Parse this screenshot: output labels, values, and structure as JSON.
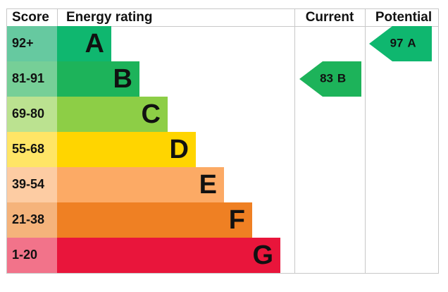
{
  "header": {
    "score": "Score",
    "rating": "Energy rating",
    "current": "Current",
    "potential": "Potential"
  },
  "bands": [
    {
      "score": "92+",
      "letter": "A",
      "color": "#0fb76f",
      "score_color": "#66c9a0"
    },
    {
      "score": "81-91",
      "letter": "B",
      "color": "#1db35a",
      "score_color": "#76cf97"
    },
    {
      "score": "69-80",
      "letter": "C",
      "color": "#8dce46",
      "score_color": "#bbe290"
    },
    {
      "score": "55-68",
      "letter": "D",
      "color": "#ffd500",
      "score_color": "#ffe566"
    },
    {
      "score": "39-54",
      "letter": "E",
      "color": "#fcaa65",
      "score_color": "#fdcca3"
    },
    {
      "score": "21-38",
      "letter": "F",
      "color": "#ef8023",
      "score_color": "#f5b37b"
    },
    {
      "score": "1-20",
      "letter": "G",
      "color": "#e9153b",
      "score_color": "#f2738a"
    }
  ],
  "current": {
    "value": 83,
    "band": "B"
  },
  "potential": {
    "value": 97,
    "band": "A"
  }
}
